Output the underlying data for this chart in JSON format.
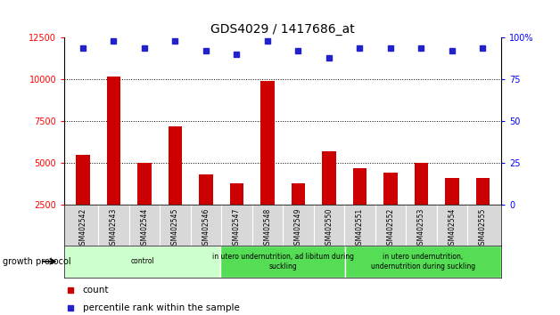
{
  "title": "GDS4029 / 1417686_at",
  "samples": [
    "GSM402542",
    "GSM402543",
    "GSM402544",
    "GSM402545",
    "GSM402546",
    "GSM402547",
    "GSM402548",
    "GSM402549",
    "GSM402550",
    "GSM402551",
    "GSM402552",
    "GSM402553",
    "GSM402554",
    "GSM402555"
  ],
  "counts": [
    5500,
    10200,
    5000,
    7200,
    4300,
    3800,
    9900,
    3800,
    5700,
    4700,
    4400,
    5000,
    4100,
    4100
  ],
  "percentile": [
    94,
    98,
    94,
    98,
    92,
    90,
    98,
    92,
    88,
    94,
    94,
    94,
    92,
    94
  ],
  "ylim_left": [
    2500,
    12500
  ],
  "ylim_right": [
    0,
    100
  ],
  "yticks_left": [
    2500,
    5000,
    7500,
    10000,
    12500
  ],
  "yticks_right": [
    0,
    25,
    50,
    75,
    100
  ],
  "yticklabels_right": [
    "0",
    "25",
    "50",
    "75",
    "100%"
  ],
  "bar_color": "#cc0000",
  "dot_color": "#2222cc",
  "background_color": "#ffffff",
  "group_labels": [
    "control",
    "in utero undernutrition, ad libitum during\nsuckling",
    "in utero undernutrition,\nundernutrition during suckling"
  ],
  "group_ranges": [
    [
      0,
      5
    ],
    [
      5,
      9
    ],
    [
      9,
      14
    ]
  ],
  "group_colors": [
    "#ccffcc",
    "#55dd55",
    "#55dd55"
  ],
  "growth_protocol_label": "growth protocol",
  "legend_count": "count",
  "legend_percentile": "percentile rank within the sample",
  "gridlines": [
    5000,
    7500,
    10000
  ],
  "bar_width": 0.45
}
